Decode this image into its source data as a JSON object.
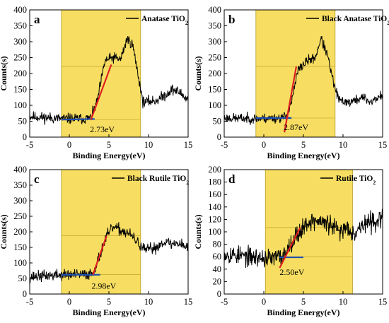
{
  "figure": {
    "colors": {
      "spectrum": "#000000",
      "shade": "#f7de62",
      "shade_edge": "#b89c22",
      "fit_slope": "#e02020",
      "baseline": "#2050b0"
    }
  },
  "chart_data": [
    {
      "type": "line",
      "panel_letter": "a",
      "legend_prefix": "Anatase TiO",
      "legend_sub": "2",
      "xlabel": "Binding Energy(eV)",
      "ylabel": "Counts(s)",
      "xlim": [
        -5,
        15
      ],
      "ylim": [
        0,
        400
      ],
      "x_ticks": [
        -5,
        0,
        5,
        10,
        15
      ],
      "y_ticks": [
        0,
        50,
        100,
        150,
        200,
        250,
        300,
        350,
        400
      ],
      "shaded_region": {
        "x": [
          -1.0,
          9.0
        ]
      },
      "reference_lines_y": [
        55,
        222
      ],
      "slope_fit": {
        "x": [
          2.73,
          5.3
        ],
        "y": [
          55,
          228
        ]
      },
      "baseline_fit": {
        "x": [
          -1.0,
          3.2
        ],
        "y": [
          55,
          57
        ]
      },
      "band_gap_label": "2.73eV",
      "band_gap_label_position": {
        "x": 2.6,
        "y": 38
      },
      "anchors": [
        [
          -5,
          65
        ],
        [
          -1,
          58
        ],
        [
          2,
          58
        ],
        [
          2.73,
          60
        ],
        [
          3.5,
          110
        ],
        [
          4.5,
          240
        ],
        [
          5.5,
          250
        ],
        [
          6.5,
          245
        ],
        [
          7.3,
          310
        ],
        [
          8,
          290
        ],
        [
          8.8,
          180
        ],
        [
          9.3,
          110
        ],
        [
          11,
          115
        ],
        [
          12,
          130
        ],
        [
          13,
          150
        ],
        [
          14,
          140
        ],
        [
          14.8,
          120
        ]
      ],
      "noise": 12,
      "seed": 11
    },
    {
      "type": "line",
      "panel_letter": "b",
      "legend_prefix": "Black Anatase TiO",
      "legend_sub": "2",
      "xlabel": "Binding Energy(eV)",
      "ylabel": "Counts(s)",
      "xlim": [
        -5,
        15
      ],
      "ylim": [
        0,
        400
      ],
      "x_ticks": [
        -5,
        0,
        5,
        10,
        15
      ],
      "y_ticks": [
        0,
        50,
        100,
        150,
        200,
        250,
        300,
        350,
        400
      ],
      "shaded_region": {
        "x": [
          -1.0,
          9.0
        ]
      },
      "reference_lines_y": [
        60,
        222
      ],
      "slope_fit": {
        "x": [
          2.6,
          4.1
        ],
        "y": [
          15,
          222
        ]
      },
      "baseline_fit": {
        "x": [
          -1.0,
          3.5
        ],
        "y": [
          60,
          60
        ]
      },
      "band_gap_label": "2.87eV",
      "band_gap_label_position": {
        "x": 2.5,
        "y": 45
      },
      "anchors": [
        [
          -5,
          60
        ],
        [
          -1,
          58
        ],
        [
          2,
          60
        ],
        [
          2.87,
          65
        ],
        [
          3.6,
          120
        ],
        [
          4.3,
          210
        ],
        [
          5.5,
          240
        ],
        [
          6.5,
          250
        ],
        [
          7.2,
          310
        ],
        [
          8,
          260
        ],
        [
          8.8,
          170
        ],
        [
          9.5,
          115
        ],
        [
          11,
          110
        ],
        [
          12.5,
          125
        ],
        [
          13.5,
          110
        ],
        [
          14.8,
          130
        ]
      ],
      "noise": 11,
      "seed": 23
    },
    {
      "type": "line",
      "panel_letter": "c",
      "legend_prefix": "Black Rutile TiO",
      "legend_sub": "2",
      "xlabel": "Binding Energy(eV)",
      "ylabel": "Counts(s)",
      "xlim": [
        -5,
        15
      ],
      "ylim": [
        0,
        400
      ],
      "x_ticks": [
        -5,
        0,
        5,
        10,
        15
      ],
      "y_ticks": [
        0,
        50,
        100,
        150,
        200,
        250,
        300,
        350,
        400
      ],
      "shaded_region": {
        "x": [
          -1.0,
          9.0
        ]
      },
      "reference_lines_y": [
        62,
        187
      ],
      "slope_fit": {
        "x": [
          2.98,
          4.7
        ],
        "y": [
          62,
          187
        ]
      },
      "baseline_fit": {
        "x": [
          -1.0,
          3.9
        ],
        "y": [
          62,
          62
        ]
      },
      "band_gap_label": "2.98eV",
      "band_gap_label_position": {
        "x": 2.8,
        "y": 40
      },
      "anchors": [
        [
          -5,
          55
        ],
        [
          -1,
          62
        ],
        [
          2,
          62
        ],
        [
          2.98,
          68
        ],
        [
          3.8,
          120
        ],
        [
          4.6,
          180
        ],
        [
          5.5,
          215
        ],
        [
          6.5,
          205
        ],
        [
          7.5,
          195
        ],
        [
          8.5,
          170
        ],
        [
          9.5,
          140
        ],
        [
          11,
          150
        ],
        [
          12,
          170
        ],
        [
          13,
          160
        ],
        [
          14,
          165
        ],
        [
          14.8,
          150
        ]
      ],
      "noise": 13,
      "seed": 37
    },
    {
      "type": "line",
      "panel_letter": "d",
      "legend_prefix": "Rutile TiO",
      "legend_sub": "2",
      "xlabel": "Binding Energy(eV)",
      "ylabel": "Counts(s)",
      "xlim": [
        -5,
        15
      ],
      "ylim": [
        0,
        200
      ],
      "x_ticks": [
        -5,
        0,
        5,
        10,
        15
      ],
      "y_ticks": [
        0,
        20,
        40,
        60,
        80,
        100,
        120,
        140,
        160,
        180,
        200
      ],
      "shaded_region": {
        "x": [
          0.2,
          11.2
        ]
      },
      "reference_lines_y": [
        60,
        107
      ],
      "slope_fit": {
        "x": [
          2.0,
          4.6
        ],
        "y": [
          42,
          107
        ]
      },
      "baseline_fit": {
        "x": [
          1.9,
          5.0
        ],
        "y": [
          59,
          59
        ]
      },
      "band_gap_label": "2.50eV",
      "band_gap_label_position": {
        "x": 2.0,
        "y": 42
      },
      "anchors": [
        [
          -5,
          65
        ],
        [
          -2,
          60
        ],
        [
          1,
          57
        ],
        [
          2.5,
          62
        ],
        [
          3.5,
          85
        ],
        [
          4.5,
          100
        ],
        [
          5.5,
          115
        ],
        [
          6.5,
          118
        ],
        [
          7.5,
          115
        ],
        [
          8.5,
          110
        ],
        [
          9.5,
          100
        ],
        [
          10.5,
          108
        ],
        [
          11.5,
          98
        ],
        [
          12.5,
          112
        ],
        [
          13.5,
          115
        ],
        [
          14.5,
          120
        ]
      ],
      "noise": 11,
      "seed": 53
    }
  ]
}
